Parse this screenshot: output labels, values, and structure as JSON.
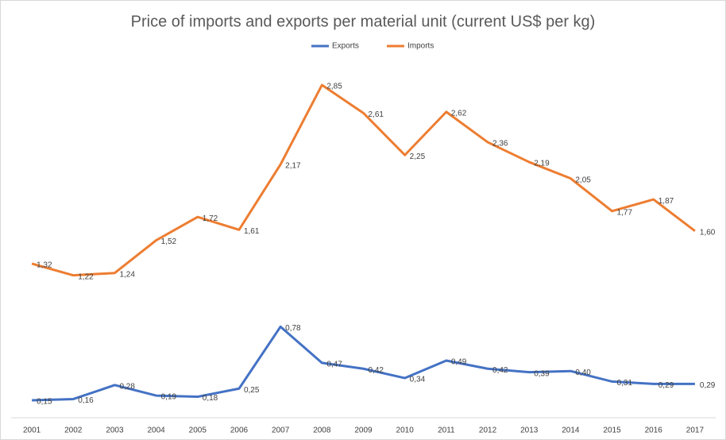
{
  "chart_data": {
    "type": "line",
    "title": "Price of imports and exports per material unit (current US$ per kg)",
    "categories": [
      "2001",
      "2002",
      "2003",
      "2004",
      "2005",
      "2006",
      "2007",
      "2008",
      "2009",
      "2010",
      "2011",
      "2012",
      "2013",
      "2014",
      "2015",
      "2016",
      "2017"
    ],
    "series": [
      {
        "name": "Exports",
        "color": "#4472c4",
        "values": [
          0.15,
          0.16,
          0.28,
          0.19,
          0.18,
          0.25,
          0.78,
          0.47,
          0.42,
          0.34,
          0.49,
          0.42,
          0.39,
          0.4,
          0.31,
          0.29,
          0.29
        ],
        "value_labels": [
          "0,15",
          "0,16",
          "0,28",
          "0,19",
          "0,18",
          "0,25",
          "0,78",
          "0,47",
          "0,42",
          "0,34",
          "0,49",
          "0,42",
          "0,39",
          "0,40",
          "0,31",
          "0,29",
          "0,29"
        ]
      },
      {
        "name": "Imports",
        "color": "#ed7d31",
        "values": [
          1.32,
          1.22,
          1.24,
          1.52,
          1.72,
          1.61,
          2.17,
          2.85,
          2.61,
          2.25,
          2.62,
          2.36,
          2.19,
          2.05,
          1.77,
          1.87,
          1.6
        ],
        "value_labels": [
          "1,32",
          "1,22",
          "1,24",
          "1,52",
          "1,72",
          "1,61",
          "2,17",
          "2,85",
          "2,61",
          "2,25",
          "2,62",
          "2,36",
          "2,19",
          "2,05",
          "1,77",
          "1,87",
          "1,60"
        ]
      }
    ],
    "ylim": [
      0,
      3
    ],
    "grid": false,
    "legend": "top"
  }
}
